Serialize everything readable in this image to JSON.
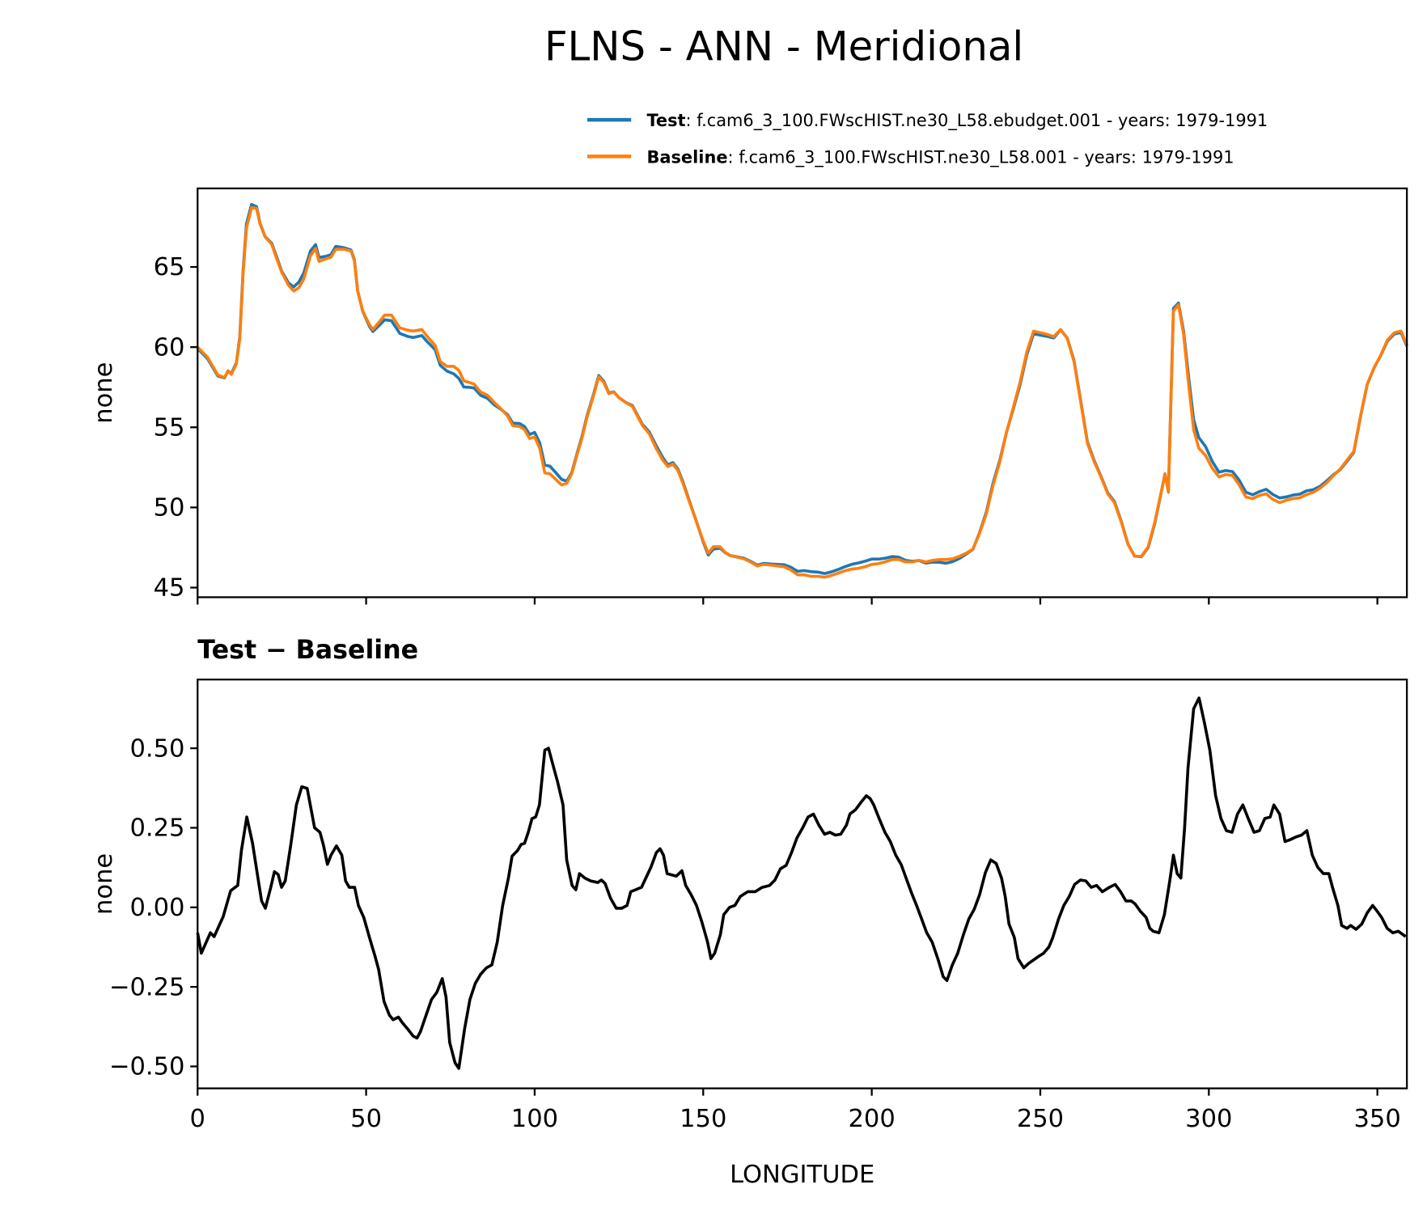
{
  "figure": {
    "title": "FLNS - ANN - Meridional",
    "legend": [
      {
        "label_bold": "Test",
        "label_rest": ": f.cam6_3_100.FWscHIST.ne30_L58.ebudget.001 - years: 1979-1991",
        "color": "#1f77b4"
      },
      {
        "label_bold": "Baseline",
        "label_rest": ": f.cam6_3_100.FWscHIST.ne30_L58.001 - years: 1979-1991",
        "color": "#ff7f0e"
      }
    ],
    "diff_title": "Test − Baseline",
    "xlabel": "LONGITUDE"
  },
  "chart_data": [
    {
      "type": "line",
      "ylabel": "none",
      "xlim": [
        0,
        358.75
      ],
      "ylim": [
        44.4,
        69.9
      ],
      "xticks": [
        0,
        50,
        100,
        150,
        200,
        250,
        300,
        350
      ],
      "yticks": [
        45,
        50,
        55,
        60,
        65
      ],
      "ytick_labels": [
        "45",
        "50",
        "55",
        "60",
        "65"
      ],
      "grid": false,
      "legend_position": "top-right (above plot)",
      "x": [
        0,
        3,
        6,
        8,
        9,
        10,
        11.5,
        12.5,
        13.5,
        14.5,
        16,
        17.5,
        18.5,
        20,
        22,
        23.5,
        25,
        27,
        28.5,
        30,
        31.5,
        33.5,
        35,
        36,
        38,
        39.5,
        41,
        43.5,
        45.5,
        46.5,
        47.5,
        49,
        51,
        52,
        54,
        55.5,
        57.5,
        60,
        62.5,
        64,
        66.5,
        68,
        70.5,
        72,
        74,
        76,
        77.5,
        79,
        80.5,
        82,
        84,
        86,
        88,
        90,
        92,
        93.5,
        95.5,
        97,
        98.5,
        100,
        101.5,
        103,
        104.5,
        106,
        108,
        109.5,
        111,
        112.5,
        114,
        115.5,
        117.5,
        119,
        120.5,
        122,
        123.5,
        125,
        127,
        129,
        130.5,
        132,
        134,
        136,
        138,
        139.5,
        141,
        142.5,
        144,
        146,
        148,
        150,
        151.5,
        153,
        155,
        156.5,
        158,
        160,
        162,
        164,
        166,
        168,
        170,
        172,
        174,
        176,
        178,
        180,
        182,
        184,
        186,
        188,
        190,
        192,
        194,
        196,
        198,
        200,
        202,
        204,
        206,
        208,
        210,
        212,
        214,
        216,
        218,
        220,
        222,
        224,
        226,
        228,
        230,
        232,
        234,
        236,
        238,
        240,
        242,
        244,
        246,
        248,
        250,
        252,
        254,
        256,
        258,
        260,
        262,
        264,
        266,
        268,
        270,
        272,
        274,
        276,
        278,
        280,
        282,
        284,
        286,
        287,
        288,
        289.5,
        291,
        292.5,
        294,
        295.5,
        297,
        299,
        301,
        303,
        305,
        307,
        309,
        311,
        313,
        315,
        317,
        319,
        321,
        323,
        325,
        327,
        329,
        331,
        333,
        335,
        337,
        339,
        341,
        343,
        345,
        347,
        349,
        351,
        353,
        355,
        357,
        358.75
      ],
      "series": [
        {
          "name": "Test",
          "color": "#1f77b4",
          "values": [
            59.92,
            59.26,
            58.2,
            58.08,
            58.52,
            58.35,
            59.02,
            60.62,
            64.72,
            67.68,
            68.9,
            68.76,
            67.75,
            66.9,
            66.47,
            65.61,
            64.71,
            64.0,
            63.75,
            64.05,
            64.63,
            66.0,
            66.4,
            65.59,
            65.66,
            65.76,
            66.29,
            66.2,
            66.06,
            65.46,
            63.51,
            62.22,
            61.3,
            60.97,
            61.38,
            61.7,
            61.65,
            60.85,
            60.66,
            60.6,
            60.72,
            60.37,
            59.83,
            58.86,
            58.5,
            58.33,
            58.05,
            57.51,
            57.5,
            57.45,
            56.99,
            56.81,
            56.4,
            56.12,
            55.78,
            55.26,
            55.24,
            55.05,
            54.55,
            54.68,
            54.03,
            52.64,
            52.58,
            52.23,
            51.75,
            51.64,
            52.17,
            53.32,
            54.4,
            55.69,
            57.08,
            58.23,
            57.88,
            57.14,
            57.21,
            56.85,
            56.55,
            56.35,
            55.76,
            55.17,
            54.71,
            53.87,
            53.12,
            52.65,
            52.8,
            52.4,
            51.6,
            50.35,
            49.11,
            47.84,
            47.03,
            47.4,
            47.46,
            47.18,
            47.0,
            46.92,
            46.84,
            46.65,
            46.4,
            46.51,
            46.47,
            46.45,
            46.43,
            46.27,
            46.02,
            46.06,
            45.99,
            45.97,
            45.88,
            45.98,
            46.13,
            46.3,
            46.45,
            46.54,
            46.65,
            46.78,
            46.78,
            46.83,
            46.94,
            46.9,
            46.7,
            46.64,
            46.69,
            46.53,
            46.59,
            46.58,
            46.52,
            46.62,
            46.82,
            47.09,
            47.39,
            48.44,
            49.72,
            51.54,
            52.95,
            54.7,
            56.16,
            57.63,
            59.52,
            60.83,
            60.75,
            60.67,
            60.57,
            61.08,
            60.57,
            59.17,
            56.64,
            54.08,
            52.92,
            51.95,
            50.91,
            50.37,
            49.15,
            47.72,
            46.96,
            46.93,
            47.5,
            49.02,
            51.05,
            52.1,
            51.01,
            62.41,
            62.75,
            61.0,
            58.15,
            55.47,
            54.36,
            53.81,
            52.88,
            52.2,
            52.3,
            52.24,
            51.7,
            50.95,
            50.79,
            50.99,
            51.13,
            50.81,
            50.59,
            50.66,
            50.77,
            50.83,
            51.04,
            51.11,
            51.32,
            51.66,
            52.05,
            52.36,
            52.88,
            53.44,
            55.65,
            57.68,
            58.7,
            59.47,
            60.38,
            60.82,
            60.92,
            60.06
          ]
        },
        {
          "name": "Baseline",
          "color": "#ff7f0e",
          "values": [
            60.0,
            59.35,
            58.26,
            58.1,
            58.5,
            58.3,
            58.95,
            60.5,
            64.5,
            67.4,
            68.7,
            68.65,
            67.7,
            66.9,
            66.4,
            65.5,
            64.65,
            63.85,
            63.5,
            63.7,
            64.25,
            65.7,
            66.15,
            65.35,
            65.5,
            65.6,
            66.1,
            66.1,
            66.0,
            65.4,
            63.5,
            62.25,
            61.4,
            61.1,
            61.6,
            62.0,
            62.0,
            61.2,
            61.05,
            61.0,
            61.1,
            60.7,
            60.1,
            59.1,
            58.8,
            58.8,
            58.55,
            57.9,
            57.8,
            57.7,
            57.2,
            57.0,
            56.55,
            56.15,
            55.7,
            55.1,
            55.05,
            54.85,
            54.3,
            54.4,
            53.7,
            52.15,
            52.1,
            51.8,
            51.4,
            51.5,
            52.1,
            53.25,
            54.3,
            55.6,
            57.0,
            58.15,
            57.8,
            57.1,
            57.2,
            56.85,
            56.55,
            56.3,
            55.7,
            55.1,
            54.6,
            53.7,
            52.95,
            52.55,
            52.7,
            52.3,
            51.5,
            50.3,
            49.1,
            47.9,
            47.15,
            47.55,
            47.55,
            47.2,
            47.0,
            46.9,
            46.8,
            46.6,
            46.35,
            46.45,
            46.4,
            46.35,
            46.3,
            46.1,
            45.8,
            45.8,
            45.7,
            45.7,
            45.65,
            45.75,
            45.9,
            46.05,
            46.15,
            46.2,
            46.3,
            46.45,
            46.5,
            46.6,
            46.75,
            46.75,
            46.6,
            46.6,
            46.7,
            46.6,
            46.7,
            46.75,
            46.75,
            46.8,
            46.95,
            47.15,
            47.4,
            48.4,
            49.6,
            51.4,
            52.85,
            54.7,
            56.25,
            57.8,
            59.7,
            61.0,
            60.9,
            60.8,
            60.65,
            61.1,
            60.55,
            59.1,
            56.55,
            54.0,
            52.85,
            51.9,
            50.85,
            50.3,
            49.1,
            47.7,
            46.95,
            46.95,
            47.55,
            49.1,
            51.1,
            52.1,
            50.95,
            62.25,
            62.65,
            60.8,
            57.7,
            54.85,
            53.7,
            53.25,
            52.45,
            51.9,
            52.05,
            52.0,
            51.4,
            50.65,
            50.55,
            50.75,
            50.85,
            50.5,
            50.3,
            50.45,
            50.55,
            50.6,
            50.8,
            50.95,
            51.2,
            51.55,
            52.0,
            52.4,
            52.95,
            53.5,
            55.7,
            57.7,
            58.7,
            59.5,
            60.45,
            60.9,
            61.0,
            60.15
          ]
        }
      ]
    },
    {
      "type": "line",
      "title": "Test − Baseline",
      "ylabel": "none",
      "xlabel": "LONGITUDE",
      "xlim": [
        0,
        358.75
      ],
      "ylim": [
        -0.569,
        0.716
      ],
      "xticks": [
        0,
        50,
        100,
        150,
        200,
        250,
        300,
        350
      ],
      "xtick_labels": [
        "0",
        "50",
        "100",
        "150",
        "200",
        "250",
        "300",
        "350"
      ],
      "yticks": [
        -0.5,
        -0.25,
        0,
        0.25,
        0.5
      ],
      "ytick_labels": [
        "−0.50",
        "−0.25",
        "0.00",
        "0.25",
        "0.50"
      ],
      "grid": false,
      "color": "#000000",
      "x": [
        0,
        1.1,
        3.8,
        4.9,
        7.6,
        9.8,
        11.9,
        13.0,
        14.6,
        16.3,
        17.9,
        19.0,
        20.1,
        21.7,
        22.8,
        23.9,
        24.9,
        26.0,
        27.6,
        29.3,
        30.9,
        32.5,
        34.7,
        36.3,
        37.4,
        38.5,
        39.6,
        41.2,
        42.8,
        43.9,
        45.0,
        46.6,
        47.7,
        49.3,
        51.0,
        52.6,
        53.7,
        55.3,
        56.9,
        58.0,
        59.6,
        60.7,
        62.3,
        64.0,
        65.1,
        66.1,
        67.8,
        69.4,
        71.0,
        72.6,
        73.7,
        74.8,
        76.4,
        77.5,
        79.2,
        80.8,
        82.4,
        84.0,
        85.7,
        87.3,
        88.9,
        90.5,
        92.2,
        93.3,
        94.9,
        96.0,
        97.0,
        98.1,
        99.2,
        100.3,
        101.4,
        103.0,
        104.1,
        105.7,
        106.8,
        108.4,
        109.5,
        111.1,
        112.2,
        113.3,
        114.9,
        116.6,
        118.7,
        119.8,
        120.9,
        122.5,
        124.2,
        125.8,
        127.4,
        128.5,
        131.7,
        134.5,
        136.1,
        137.2,
        138.2,
        139.3,
        142.0,
        143.7,
        144.8,
        146.4,
        148.0,
        149.6,
        151.3,
        152.3,
        153.4,
        155.1,
        156.1,
        157.8,
        159.4,
        161.0,
        163.2,
        165.4,
        167.5,
        169.7,
        171.3,
        172.9,
        174.6,
        176.2,
        177.8,
        179.5,
        181.1,
        182.7,
        184.3,
        186.0,
        187.6,
        189.2,
        190.8,
        192.5,
        193.5,
        195.2,
        196.8,
        198.4,
        199.5,
        200.6,
        202.2,
        203.9,
        205.5,
        207.1,
        208.7,
        210.4,
        212.0,
        213.1,
        214.7,
        216.3,
        217.9,
        219.6,
        221.2,
        222.3,
        223.9,
        225.5,
        227.2,
        228.8,
        230.4,
        232.0,
        233.7,
        235.3,
        236.9,
        238.5,
        239.6,
        240.7,
        242.3,
        243.4,
        245.1,
        246.7,
        247.8,
        249.4,
        251.0,
        252.6,
        253.7,
        255.4,
        257.0,
        258.6,
        260.2,
        261.9,
        263.5,
        265.1,
        266.7,
        268.4,
        270.5,
        272.2,
        273.8,
        275.4,
        277.0,
        278.1,
        279.8,
        281.4,
        282.5,
        283.5,
        285.2,
        286.8,
        288.4,
        289.5,
        290.6,
        291.7,
        292.8,
        293.8,
        295.5,
        297.1,
        298.7,
        300.3,
        302.0,
        303.6,
        305.2,
        306.9,
        308.5,
        310.1,
        311.7,
        313.4,
        315.0,
        316.6,
        318.2,
        319.3,
        321.0,
        322.6,
        324.2,
        325.8,
        327.5,
        329.1,
        330.7,
        332.3,
        334.0,
        335.6,
        336.7,
        338.3,
        339.4,
        341.0,
        342.1,
        343.7,
        345.4,
        347.0,
        348.6,
        349.7,
        351.3,
        352.9,
        354.6,
        356.2,
        358.4
      ],
      "values": [
        -0.08,
        -0.144,
        -0.08,
        -0.092,
        -0.029,
        0.052,
        0.069,
        0.178,
        0.284,
        0.201,
        0.092,
        0.02,
        -0.003,
        0.063,
        0.112,
        0.103,
        0.063,
        0.083,
        0.193,
        0.322,
        0.379,
        0.374,
        0.25,
        0.236,
        0.193,
        0.135,
        0.164,
        0.193,
        0.164,
        0.083,
        0.063,
        0.063,
        0.006,
        -0.032,
        -0.095,
        -0.152,
        -0.195,
        -0.296,
        -0.339,
        -0.353,
        -0.345,
        -0.362,
        -0.382,
        -0.405,
        -0.411,
        -0.391,
        -0.339,
        -0.29,
        -0.267,
        -0.224,
        -0.282,
        -0.425,
        -0.489,
        -0.506,
        -0.382,
        -0.29,
        -0.239,
        -0.21,
        -0.19,
        -0.181,
        -0.109,
        0.006,
        0.092,
        0.161,
        0.178,
        0.198,
        0.201,
        0.236,
        0.279,
        0.284,
        0.322,
        0.494,
        0.5,
        0.437,
        0.394,
        0.322,
        0.149,
        0.069,
        0.055,
        0.106,
        0.092,
        0.083,
        0.078,
        0.086,
        0.075,
        0.029,
        -0.003,
        -0.003,
        0.006,
        0.049,
        0.063,
        0.126,
        0.172,
        0.184,
        0.164,
        0.106,
        0.098,
        0.115,
        0.069,
        0.04,
        0.006,
        -0.046,
        -0.109,
        -0.161,
        -0.144,
        -0.086,
        -0.023,
        0,
        0.006,
        0.034,
        0.049,
        0.049,
        0.063,
        0.069,
        0.086,
        0.121,
        0.132,
        0.172,
        0.218,
        0.25,
        0.284,
        0.293,
        0.259,
        0.23,
        0.236,
        0.227,
        0.23,
        0.259,
        0.293,
        0.307,
        0.33,
        0.351,
        0.342,
        0.322,
        0.279,
        0.236,
        0.207,
        0.164,
        0.135,
        0.086,
        0.04,
        0.011,
        -0.034,
        -0.08,
        -0.109,
        -0.161,
        -0.218,
        -0.23,
        -0.181,
        -0.144,
        -0.086,
        -0.037,
        -0.006,
        0.04,
        0.109,
        0.149,
        0.138,
        0.092,
        0.034,
        -0.052,
        -0.095,
        -0.161,
        -0.19,
        -0.175,
        -0.167,
        -0.155,
        -0.144,
        -0.124,
        -0.095,
        -0.037,
        0.006,
        0.034,
        0.072,
        0.086,
        0.083,
        0.063,
        0.069,
        0.049,
        0.063,
        0.072,
        0.049,
        0.02,
        0.02,
        0.011,
        -0.014,
        -0.032,
        -0.066,
        -0.075,
        -0.08,
        -0.023,
        0.083,
        0.164,
        0.106,
        0.092,
        0.25,
        0.437,
        0.624,
        0.658,
        0.58,
        0.494,
        0.351,
        0.279,
        0.241,
        0.236,
        0.293,
        0.322,
        0.279,
        0.236,
        0.241,
        0.279,
        0.284,
        0.322,
        0.293,
        0.207,
        0.213,
        0.221,
        0.227,
        0.241,
        0.164,
        0.126,
        0.106,
        0.106,
        0.063,
        0.006,
        -0.057,
        -0.066,
        -0.057,
        -0.069,
        -0.052,
        -0.017,
        0.006,
        -0.009,
        -0.032,
        -0.066,
        -0.08,
        -0.075,
        -0.092
      ]
    }
  ]
}
